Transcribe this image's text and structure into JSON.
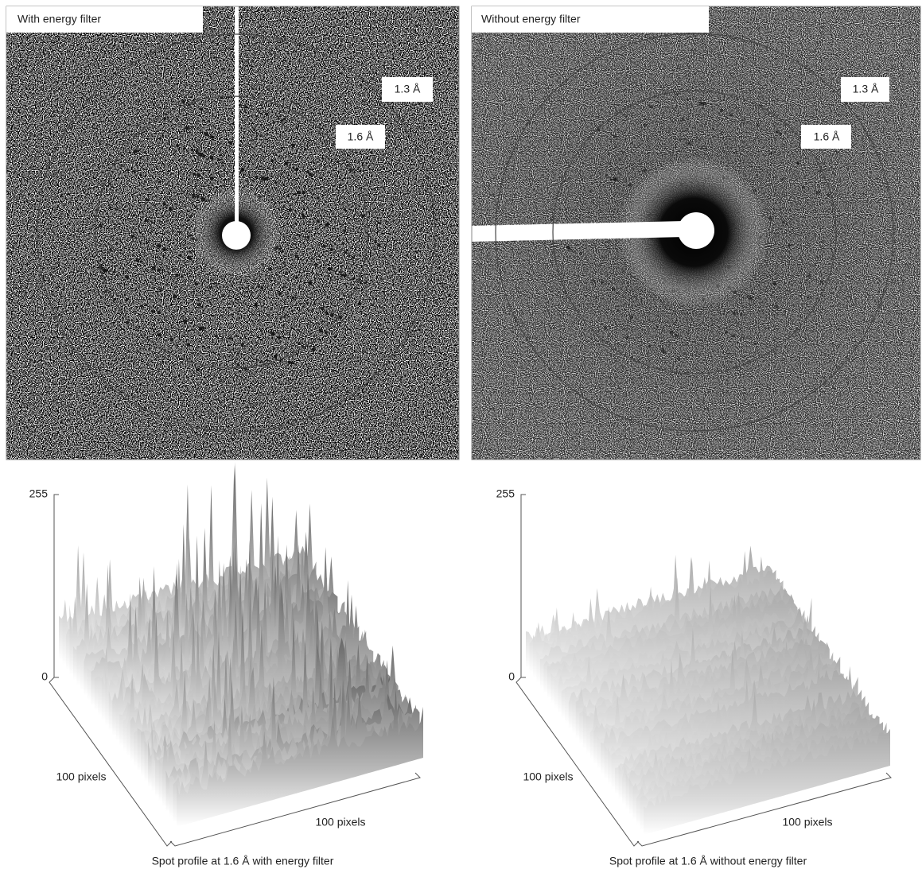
{
  "panels": [
    {
      "label": "With energy filter",
      "rings": [
        "1.3 Å",
        "1.6 Å"
      ]
    },
    {
      "label": "Without energy filter",
      "rings": [
        "1.3 Å",
        "1.6 Å"
      ]
    }
  ],
  "profiles": [
    {
      "ytop": "255",
      "ybottom": "0",
      "depth_label": "100 pixels",
      "width_label": "100 pixels",
      "caption": "Spot profile at 1.6 Å with energy filter"
    },
    {
      "ytop": "255",
      "ybottom": "0",
      "depth_label": "100 pixels",
      "width_label": "100 pixels",
      "caption": "Spot profile at 1.6 Å without energy filter"
    }
  ]
}
